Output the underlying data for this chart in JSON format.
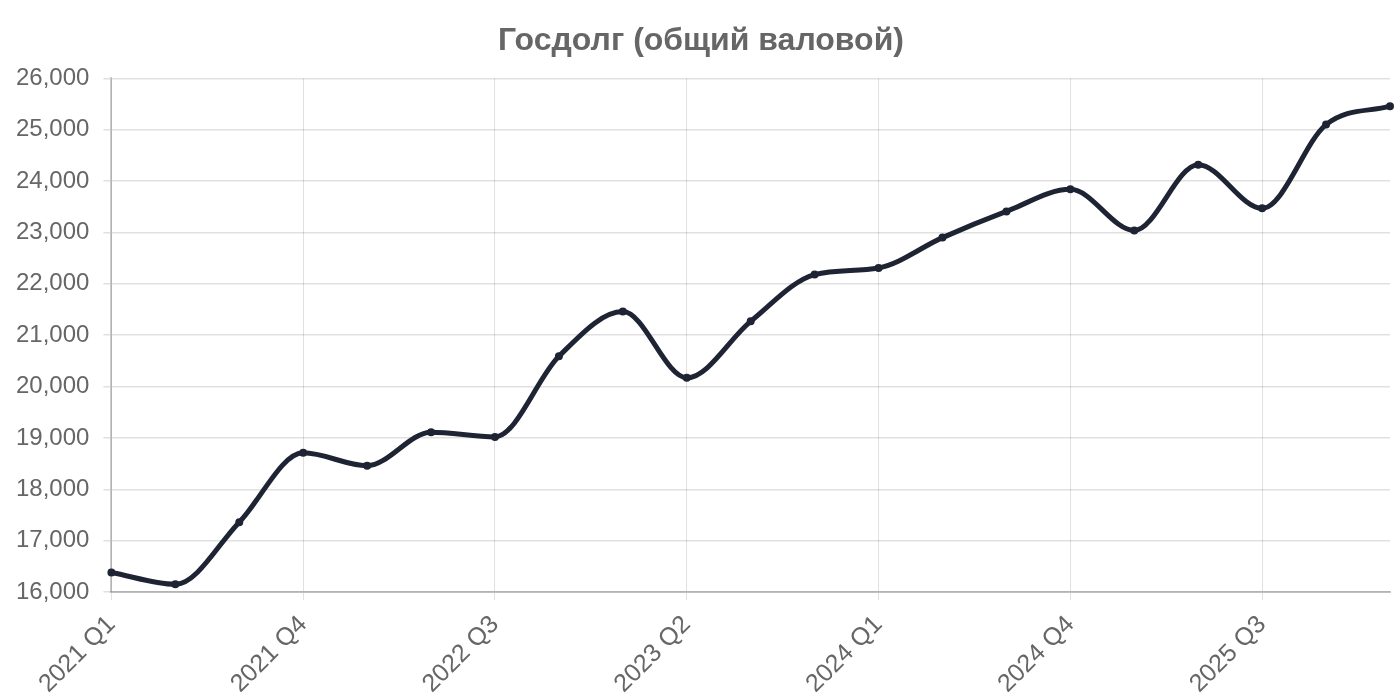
{
  "chart_data": {
    "type": "line",
    "title": "Госдолг (общий валовой)",
    "categories": [
      "2021 Q1",
      null,
      null,
      "2021 Q4",
      null,
      null,
      "2022 Q3",
      null,
      null,
      "2023 Q2",
      null,
      null,
      "2024 Q1",
      null,
      null,
      "2024 Q4",
      null,
      null,
      "2025 Q3",
      null,
      null
    ],
    "series": [
      {
        "color": "#1e2433",
        "values": [
          16380,
          16150,
          17360,
          18710,
          18460,
          19110,
          19020,
          20590,
          21460,
          20170,
          21270,
          22180,
          22310,
          22900,
          23410,
          23840,
          23040,
          24320,
          23470,
          25100,
          25460
        ]
      }
    ],
    "ylim": [
      16000,
      26000
    ],
    "yticks": [
      {
        "value": 16000,
        "label": "16,000"
      },
      {
        "value": 17000,
        "label": "17,000"
      },
      {
        "value": 18000,
        "label": "18,000"
      },
      {
        "value": 19000,
        "label": "19,000"
      },
      {
        "value": 20000,
        "label": "20,000"
      },
      {
        "value": 21000,
        "label": "21,000"
      },
      {
        "value": 22000,
        "label": "22,000"
      },
      {
        "value": 23000,
        "label": "23,000"
      },
      {
        "value": 24000,
        "label": "24,000"
      },
      {
        "value": 25000,
        "label": "25,000"
      },
      {
        "value": 26000,
        "label": "26,000"
      }
    ],
    "grid": true,
    "legend": false,
    "marker": "circle",
    "line_style": "solid"
  }
}
